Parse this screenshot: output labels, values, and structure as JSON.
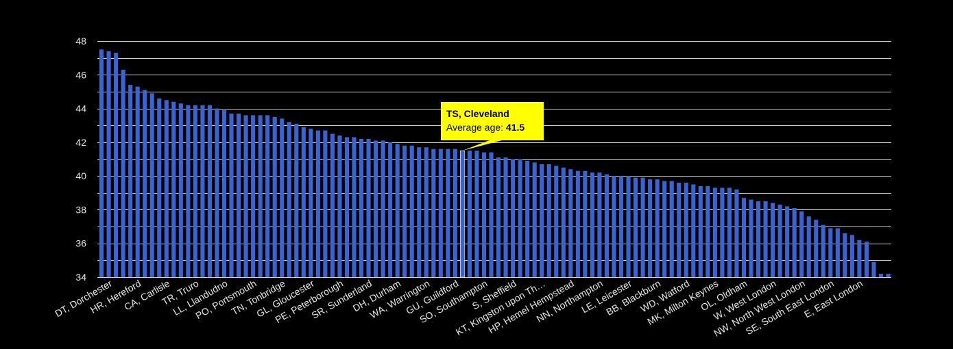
{
  "chart_data": {
    "type": "bar",
    "title": "",
    "xlabel": "",
    "ylabel": "",
    "ylim": [
      34,
      48
    ],
    "yticks": [
      34,
      36,
      38,
      40,
      42,
      44,
      46,
      48
    ],
    "grid": true,
    "colors": {
      "bar": "#3a63d4",
      "background": "#000000",
      "grid": "#cfcfcf",
      "tooltip": "#ffff00"
    },
    "categories_shown": [
      "DT, Dorchester",
      "HR, Hereford",
      "CA, Carlisle",
      "TR, Truro",
      "LL, Llandudno",
      "PO, Portsmouth",
      "TN, Tonbridge",
      "GL, Gloucester",
      "PE, Peterborough",
      "SR, Sunderland",
      "DH, Durham",
      "WA, Warrington",
      "GU, Guildford",
      "SO, Southampton",
      "S, Sheffield",
      "KT, Kingston upon Th…",
      "HP, Hemel Hempstead",
      "NN, Northampton",
      "LE, Leicester",
      "BB, Blackburn",
      "WD, Watford",
      "MK, Milton Keynes",
      "OL, Oldham",
      "W, West London",
      "NW, North West London",
      "SE, South East London",
      "E, East London"
    ],
    "values": [
      47.5,
      47.4,
      47.3,
      46.3,
      45.4,
      45.3,
      45.1,
      44.9,
      44.6,
      44.5,
      44.4,
      44.3,
      44.2,
      44.2,
      44.2,
      44.2,
      44.0,
      43.9,
      43.7,
      43.7,
      43.6,
      43.6,
      43.6,
      43.6,
      43.5,
      43.4,
      43.2,
      43.1,
      42.9,
      42.8,
      42.7,
      42.7,
      42.5,
      42.4,
      42.3,
      42.3,
      42.2,
      42.2,
      42.1,
      42.1,
      42.0,
      41.9,
      41.8,
      41.8,
      41.7,
      41.7,
      41.6,
      41.6,
      41.6,
      41.6,
      41.5,
      41.5,
      41.5,
      41.4,
      41.4,
      41.1,
      41.1,
      41.0,
      41.0,
      40.9,
      40.8,
      40.7,
      40.7,
      40.6,
      40.5,
      40.4,
      40.3,
      40.3,
      40.2,
      40.2,
      40.1,
      40.0,
      40.0,
      40.0,
      39.9,
      39.9,
      39.8,
      39.8,
      39.7,
      39.7,
      39.6,
      39.6,
      39.5,
      39.4,
      39.4,
      39.3,
      39.3,
      39.3,
      39.2,
      38.7,
      38.6,
      38.5,
      38.5,
      38.4,
      38.3,
      38.2,
      38.1,
      37.9,
      37.6,
      37.4,
      37.1,
      36.9,
      36.9,
      36.6,
      36.5,
      36.2,
      36.1,
      34.9,
      34.2,
      34.2
    ],
    "highlight": {
      "index": 50,
      "label": "TS, Cleveland",
      "metric_label": "Average age:",
      "value": "41.5"
    }
  }
}
